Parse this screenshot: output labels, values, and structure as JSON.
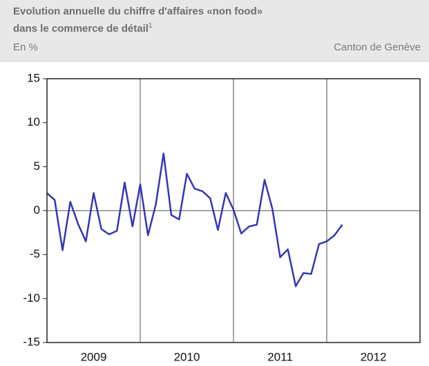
{
  "chart_data": {
    "type": "line",
    "title_lines": [
      "Evolution annuelle du chiffre d'affaires «non food»",
      "dans le commerce de détail"
    ],
    "title_note": "1",
    "unit_label": "En %",
    "source_label": "Canton de Genève",
    "x": [
      2009,
      2009.083,
      2009.167,
      2009.25,
      2009.333,
      2009.417,
      2009.5,
      2009.583,
      2009.667,
      2009.75,
      2009.833,
      2009.917,
      2010,
      2010.083,
      2010.167,
      2010.25,
      2010.333,
      2010.417,
      2010.5,
      2010.583,
      2010.667,
      2010.75,
      2010.833,
      2010.917,
      2011,
      2011.083,
      2011.167,
      2011.25,
      2011.333,
      2011.417,
      2011.5,
      2011.583,
      2011.667,
      2011.75,
      2011.833,
      2011.917,
      2012,
      2012.083,
      2012.167
    ],
    "series": [
      {
        "color": "#3535b5",
        "values": [
          2.0,
          1.2,
          -4.5,
          1.0,
          -1.5,
          -3.5,
          2.0,
          -2.1,
          -2.7,
          -2.3,
          3.2,
          -1.8,
          3.0,
          -2.8,
          0.7,
          6.5,
          -0.5,
          -1.0,
          4.2,
          2.5,
          2.2,
          1.4,
          -2.2,
          2.0,
          0.1,
          -2.6,
          -1.8,
          -1.6,
          3.5,
          0.2,
          -5.3,
          -4.4,
          -8.6,
          -7.1,
          -7.2,
          -3.8,
          -3.5,
          -2.8,
          -1.6
        ]
      }
    ],
    "xlim": [
      2009,
      2013
    ],
    "xticks": [
      {
        "value": 2009.5,
        "label": "2009"
      },
      {
        "value": 2010.5,
        "label": "2010"
      },
      {
        "value": 2011.5,
        "label": "2011"
      },
      {
        "value": 2012.5,
        "label": "2012"
      }
    ],
    "xgrid_lines": [
      2010,
      2011,
      2012
    ],
    "ylim": [
      -15,
      15
    ],
    "yticks": [
      -15,
      -10,
      -5,
      0,
      5,
      10,
      15
    ],
    "zero_line": true
  }
}
